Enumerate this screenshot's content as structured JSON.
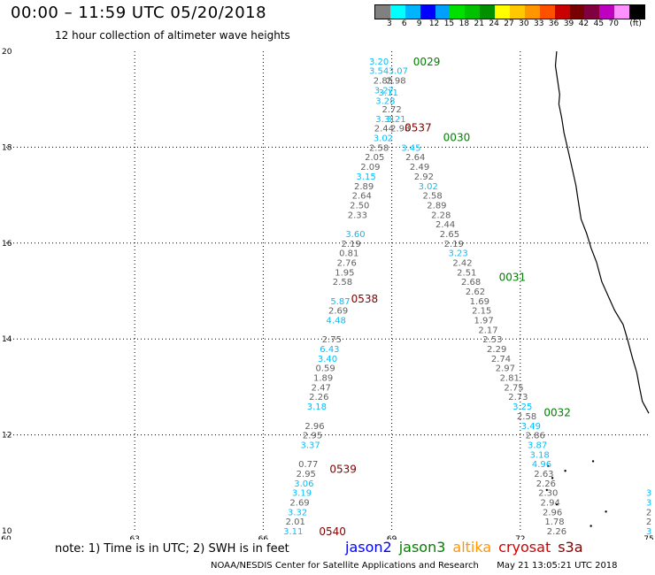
{
  "title": "00:00 – 11:59 UTC 05/20/2018",
  "subtitle": "12 hour collection of altimeter wave heights",
  "colorbar": {
    "colors": [
      "#808080",
      "#00ffff",
      "#00b4ff",
      "#0000ff",
      "#00a0ff",
      "#00e000",
      "#00c000",
      "#009000",
      "#ffff00",
      "#ffc800",
      "#ff9600",
      "#ff5000",
      "#c80000",
      "#780000",
      "#800040",
      "#c000c0",
      "#ff90ff",
      "#000000"
    ],
    "labels": [
      "3",
      "6",
      "9",
      "12",
      "15",
      "18",
      "21",
      "24",
      "27",
      "30",
      "33",
      "36",
      "39",
      "42",
      "45",
      "70",
      "(ft)"
    ]
  },
  "map": {
    "lon_ticks": [
      "60",
      "63",
      "66",
      "69",
      "72",
      "75"
    ],
    "lat_ticks": [
      "20",
      "18",
      "16",
      "14",
      "12",
      "10"
    ],
    "lon_range": [
      60,
      75
    ],
    "lat_range": [
      10,
      20
    ],
    "grid": "dotted"
  },
  "track_labels": [
    {
      "text": "0029",
      "lon": 69.5,
      "lat": 19.8,
      "color": "#008000"
    },
    {
      "text": "0030",
      "lon": 70.2,
      "lat": 18.22,
      "color": "#008000"
    },
    {
      "text": "0031",
      "lon": 71.5,
      "lat": 15.3,
      "color": "#008000"
    },
    {
      "text": "0032",
      "lon": 72.55,
      "lat": 12.48,
      "color": "#008000"
    },
    {
      "text": "0537",
      "lon": 69.3,
      "lat": 18.42,
      "color": "#800000"
    },
    {
      "text": "0538",
      "lon": 68.05,
      "lat": 14.85,
      "color": "#800000"
    },
    {
      "text": "0539",
      "lon": 67.55,
      "lat": 11.3,
      "color": "#800000"
    },
    {
      "text": "0540",
      "lon": 67.3,
      "lat": 10.0,
      "color": "#800000"
    }
  ],
  "observations": [
    {
      "v": "3.20",
      "lon": 68.7,
      "lat": 19.8,
      "c": "#00bfff"
    },
    {
      "v": "3.54",
      "lon": 68.7,
      "lat": 19.6,
      "c": "#00bfff"
    },
    {
      "v": "3.07",
      "lon": 69.15,
      "lat": 19.6,
      "c": "#00bfff"
    },
    {
      "v": "2.85",
      "lon": 68.8,
      "lat": 19.4,
      "c": "#606060"
    },
    {
      "v": "2.98",
      "lon": 69.1,
      "lat": 19.4,
      "c": "#606060"
    },
    {
      "v": "3.27",
      "lon": 68.82,
      "lat": 19.2,
      "c": "#00bfff"
    },
    {
      "v": "3.11",
      "lon": 68.92,
      "lat": 19.15,
      "c": "#00bfff"
    },
    {
      "v": "3.28",
      "lon": 68.85,
      "lat": 18.98,
      "c": "#00bfff"
    },
    {
      "v": "2.72",
      "lon": 69.0,
      "lat": 18.8,
      "c": "#606060"
    },
    {
      "v": "3.31",
      "lon": 68.85,
      "lat": 18.6,
      "c": "#00bfff"
    },
    {
      "v": "3.21",
      "lon": 69.1,
      "lat": 18.6,
      "c": "#00bfff"
    },
    {
      "v": "2.44",
      "lon": 68.82,
      "lat": 18.4,
      "c": "#606060"
    },
    {
      "v": "2.98",
      "lon": 69.2,
      "lat": 18.4,
      "c": "#606060"
    },
    {
      "v": "3.02",
      "lon": 68.8,
      "lat": 18.2,
      "c": "#00bfff"
    },
    {
      "v": "3.45",
      "lon": 69.45,
      "lat": 18.0,
      "c": "#00bfff"
    },
    {
      "v": "2.58",
      "lon": 68.7,
      "lat": 18.0,
      "c": "#606060"
    },
    {
      "v": "2.05",
      "lon": 68.6,
      "lat": 17.8,
      "c": "#606060"
    },
    {
      "v": "2.64",
      "lon": 69.55,
      "lat": 17.8,
      "c": "#606060"
    },
    {
      "v": "2.49",
      "lon": 69.65,
      "lat": 17.6,
      "c": "#606060"
    },
    {
      "v": "2.09",
      "lon": 68.5,
      "lat": 17.6,
      "c": "#606060"
    },
    {
      "v": "2.92",
      "lon": 69.75,
      "lat": 17.4,
      "c": "#606060"
    },
    {
      "v": "3.15",
      "lon": 68.4,
      "lat": 17.4,
      "c": "#00bfff"
    },
    {
      "v": "3.02",
      "lon": 69.85,
      "lat": 17.2,
      "c": "#00bfff"
    },
    {
      "v": "2.89",
      "lon": 68.35,
      "lat": 17.2,
      "c": "#606060"
    },
    {
      "v": "2.58",
      "lon": 69.95,
      "lat": 17.0,
      "c": "#606060"
    },
    {
      "v": "2.64",
      "lon": 68.3,
      "lat": 17.0,
      "c": "#606060"
    },
    {
      "v": "2.89",
      "lon": 70.05,
      "lat": 16.8,
      "c": "#606060"
    },
    {
      "v": "2.50",
      "lon": 68.25,
      "lat": 16.8,
      "c": "#606060"
    },
    {
      "v": "2.28",
      "lon": 70.15,
      "lat": 16.6,
      "c": "#606060"
    },
    {
      "v": "2.33",
      "lon": 68.2,
      "lat": 16.6,
      "c": "#606060"
    },
    {
      "v": "2.44",
      "lon": 70.25,
      "lat": 16.4,
      "c": "#606060"
    },
    {
      "v": "2.65",
      "lon": 70.35,
      "lat": 16.2,
      "c": "#606060"
    },
    {
      "v": "3.60",
      "lon": 68.15,
      "lat": 16.2,
      "c": "#00bfff"
    },
    {
      "v": "2.19",
      "lon": 70.45,
      "lat": 16.0,
      "c": "#606060"
    },
    {
      "v": "2.19",
      "lon": 68.05,
      "lat": 16.0,
      "c": "#606060"
    },
    {
      "v": "3.23",
      "lon": 70.55,
      "lat": 15.8,
      "c": "#00bfff"
    },
    {
      "v": "0.81",
      "lon": 68.0,
      "lat": 15.8,
      "c": "#606060"
    },
    {
      "v": "2.42",
      "lon": 70.65,
      "lat": 15.6,
      "c": "#606060"
    },
    {
      "v": "2.76",
      "lon": 67.95,
      "lat": 15.6,
      "c": "#606060"
    },
    {
      "v": "2.51",
      "lon": 70.75,
      "lat": 15.4,
      "c": "#606060"
    },
    {
      "v": "1.95",
      "lon": 67.9,
      "lat": 15.4,
      "c": "#606060"
    },
    {
      "v": "2.68",
      "lon": 70.85,
      "lat": 15.2,
      "c": "#606060"
    },
    {
      "v": "2.58",
      "lon": 67.85,
      "lat": 15.2,
      "c": "#606060"
    },
    {
      "v": "2.62",
      "lon": 70.95,
      "lat": 15.0,
      "c": "#606060"
    },
    {
      "v": "1.69",
      "lon": 71.05,
      "lat": 14.8,
      "c": "#606060"
    },
    {
      "v": "5.87",
      "lon": 67.8,
      "lat": 14.8,
      "c": "#00bfff"
    },
    {
      "v": "2.15",
      "lon": 71.1,
      "lat": 14.6,
      "c": "#606060"
    },
    {
      "v": "2.69",
      "lon": 67.75,
      "lat": 14.6,
      "c": "#606060"
    },
    {
      "v": "1.97",
      "lon": 71.15,
      "lat": 14.4,
      "c": "#606060"
    },
    {
      "v": "4.48",
      "lon": 67.7,
      "lat": 14.4,
      "c": "#00bfff"
    },
    {
      "v": "2.17",
      "lon": 71.25,
      "lat": 14.2,
      "c": "#606060"
    },
    {
      "v": "2.53",
      "lon": 71.35,
      "lat": 14.0,
      "c": "#606060"
    },
    {
      "v": "2.75",
      "lon": 67.6,
      "lat": 14.0,
      "c": "#606060"
    },
    {
      "v": "2.29",
      "lon": 71.45,
      "lat": 13.8,
      "c": "#606060"
    },
    {
      "v": "6.43",
      "lon": 67.55,
      "lat": 13.8,
      "c": "#00bfff"
    },
    {
      "v": "2.74",
      "lon": 71.55,
      "lat": 13.6,
      "c": "#606060"
    },
    {
      "v": "3.40",
      "lon": 67.5,
      "lat": 13.6,
      "c": "#00bfff"
    },
    {
      "v": "2.97",
      "lon": 71.65,
      "lat": 13.4,
      "c": "#606060"
    },
    {
      "v": "0.59",
      "lon": 67.45,
      "lat": 13.4,
      "c": "#606060"
    },
    {
      "v": "2.81",
      "lon": 71.75,
      "lat": 13.2,
      "c": "#606060"
    },
    {
      "v": "1.89",
      "lon": 67.4,
      "lat": 13.2,
      "c": "#606060"
    },
    {
      "v": "2.75",
      "lon": 71.85,
      "lat": 13.0,
      "c": "#606060"
    },
    {
      "v": "2.47",
      "lon": 67.35,
      "lat": 13.0,
      "c": "#606060"
    },
    {
      "v": "2.73",
      "lon": 71.95,
      "lat": 12.8,
      "c": "#606060"
    },
    {
      "v": "2.26",
      "lon": 67.3,
      "lat": 12.8,
      "c": "#606060"
    },
    {
      "v": "3.25",
      "lon": 72.05,
      "lat": 12.6,
      "c": "#00bfff"
    },
    {
      "v": "3.18",
      "lon": 67.25,
      "lat": 12.6,
      "c": "#00bfff"
    },
    {
      "v": "2.58",
      "lon": 72.15,
      "lat": 12.4,
      "c": "#606060"
    },
    {
      "v": "3.49",
      "lon": 72.25,
      "lat": 12.2,
      "c": "#00bfff"
    },
    {
      "v": "2.96",
      "lon": 67.2,
      "lat": 12.2,
      "c": "#606060"
    },
    {
      "v": "2.86",
      "lon": 72.35,
      "lat": 12.0,
      "c": "#606060"
    },
    {
      "v": "2.95",
      "lon": 67.15,
      "lat": 12.0,
      "c": "#606060"
    },
    {
      "v": "3.87",
      "lon": 72.4,
      "lat": 11.8,
      "c": "#00bfff"
    },
    {
      "v": "3.37",
      "lon": 67.1,
      "lat": 11.8,
      "c": "#00bfff"
    },
    {
      "v": "3.18",
      "lon": 72.45,
      "lat": 11.6,
      "c": "#00bfff"
    },
    {
      "v": "4.96",
      "lon": 72.5,
      "lat": 11.4,
      "c": "#00bfff"
    },
    {
      "v": "0.77",
      "lon": 67.05,
      "lat": 11.4,
      "c": "#606060"
    },
    {
      "v": "2.95",
      "lon": 67.0,
      "lat": 11.2,
      "c": "#606060"
    },
    {
      "v": "2.63",
      "lon": 72.55,
      "lat": 11.2,
      "c": "#606060"
    },
    {
      "v": "3.06",
      "lon": 66.95,
      "lat": 11.0,
      "c": "#00bfff"
    },
    {
      "v": "2.26",
      "lon": 72.6,
      "lat": 11.0,
      "c": "#606060"
    },
    {
      "v": "3.19",
      "lon": 66.9,
      "lat": 10.8,
      "c": "#00bfff"
    },
    {
      "v": "2.30",
      "lon": 72.65,
      "lat": 10.8,
      "c": "#606060"
    },
    {
      "v": "2.69",
      "lon": 66.85,
      "lat": 10.6,
      "c": "#606060"
    },
    {
      "v": "2.94",
      "lon": 72.7,
      "lat": 10.6,
      "c": "#606060"
    },
    {
      "v": "3.32",
      "lon": 66.8,
      "lat": 10.4,
      "c": "#00bfff"
    },
    {
      "v": "2.96",
      "lon": 72.75,
      "lat": 10.4,
      "c": "#606060"
    },
    {
      "v": "2.01",
      "lon": 66.75,
      "lat": 10.2,
      "c": "#606060"
    },
    {
      "v": "1.78",
      "lon": 72.8,
      "lat": 10.2,
      "c": "#606060"
    },
    {
      "v": "3.11",
      "lon": 66.7,
      "lat": 10.0,
      "c": "#00bfff"
    },
    {
      "v": "2.26",
      "lon": 72.85,
      "lat": 10.0,
      "c": "#606060"
    },
    {
      "v": "3",
      "lon": 75.0,
      "lat": 10.8,
      "c": "#00bfff"
    },
    {
      "v": "3",
      "lon": 75.0,
      "lat": 10.6,
      "c": "#00bfff"
    },
    {
      "v": "2",
      "lon": 75.0,
      "lat": 10.4,
      "c": "#606060"
    },
    {
      "v": "2",
      "lon": 75.0,
      "lat": 10.2,
      "c": "#606060"
    },
    {
      "v": "3",
      "lon": 75.0,
      "lat": 10.0,
      "c": "#00bfff"
    }
  ],
  "note": "note: 1) Time is in UTC; 2) SWH is in feet",
  "satellites": [
    {
      "name": "jason2",
      "color": "#0000ff"
    },
    {
      "name": "jason3",
      "color": "#008000"
    },
    {
      "name": "altika",
      "color": "#ff9600"
    },
    {
      "name": "cryosat",
      "color": "#d00000"
    },
    {
      "name": "s3a",
      "color": "#800000"
    }
  ],
  "footer_left": "NOAA/NESDIS Center for Satellite Applications and Research",
  "footer_right": "May 21 13:05:21 UTC 2018"
}
